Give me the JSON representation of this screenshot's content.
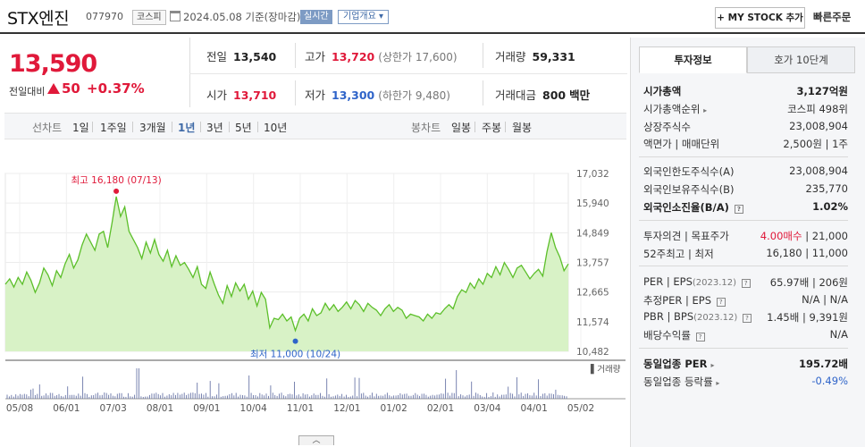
{
  "header": {
    "name": "STX엔진",
    "code": "077970",
    "market": "코스피",
    "date": "2024.05.08",
    "date_suffix": "기준(장마감)",
    "realtime": "실시간",
    "overview": "기업개요 ▾",
    "mystock_label": "+ MY STOCK 추가",
    "quick_order": "빠른주문"
  },
  "quote": {
    "price": "13,590",
    "diff_label": "전일대비",
    "diff": "50",
    "pct": "+0.37%",
    "prev_label": "전일",
    "prev": "13,540",
    "high_label": "고가",
    "high": "13,720",
    "upper_limit": "(상한가 17,600)",
    "volume_label": "거래량",
    "volume": "59,331",
    "open_label": "시가",
    "open": "13,710",
    "low_label": "저가",
    "low": "13,300",
    "lower_limit": "(하한가 9,480)",
    "amount_label": "거래대금",
    "amount": "800",
    "amount_unit": "백만"
  },
  "periods": {
    "line_label": "선차트",
    "items": [
      "1일",
      "1주일",
      "3개월",
      "1년",
      "3년",
      "5년",
      "10년"
    ],
    "active": "1년",
    "candle_label": "봉차트",
    "candle_items": [
      "일봉",
      "주봉",
      "월봉"
    ]
  },
  "chart_data": {
    "type": "area",
    "y_ticks": [
      "17,032",
      "15,940",
      "14,849",
      "13,757",
      "12,665",
      "11,574",
      "10,482"
    ],
    "ylim": [
      10482,
      17032
    ],
    "x_ticks": [
      "05/08",
      "06/01",
      "07/03",
      "08/01",
      "09/01",
      "10/04",
      "11/01",
      "12/01",
      "01/02",
      "02/01",
      "03/04",
      "04/01",
      "05/02"
    ],
    "high_annotation": "최고 16,180 (07/13)",
    "low_annotation": "최저 11,000 (10/24)",
    "volume_label": "거래량",
    "series": [
      {
        "values": [
          12950,
          13150,
          12850,
          13200,
          12950,
          13400,
          13100,
          12650,
          13000,
          13550,
          13300,
          12900,
          13450,
          13200,
          13700,
          14050,
          13550,
          13850,
          14400,
          14800,
          14500,
          14200,
          14800,
          14900,
          14300,
          15200,
          16180,
          15450,
          15800,
          14900,
          14600,
          14300,
          13900,
          14500,
          14100,
          14600,
          14050,
          13800,
          14200,
          13600,
          14000,
          13650,
          13750,
          13500,
          13200,
          13600,
          12950,
          12800,
          13400,
          12950,
          12550,
          12250,
          12900,
          12500,
          13000,
          12700,
          12950,
          12400,
          12700,
          12150,
          12650,
          12400,
          11350,
          11700,
          11650,
          11850,
          11600,
          11750,
          11250,
          11700,
          11850,
          11600,
          12050,
          11800,
          11900,
          12250,
          12000,
          12200,
          11950,
          12100,
          12300,
          12050,
          12350,
          12200,
          11950,
          12250,
          12100,
          12000,
          11800,
          12050,
          12200,
          11950,
          12100,
          12000,
          11700,
          11850,
          11800,
          11750,
          11600,
          11850,
          11700,
          11900,
          11850,
          12050,
          12200,
          12050,
          12500,
          12750,
          12650,
          13000,
          12800,
          13150,
          12950,
          13350,
          13200,
          13600,
          13300,
          13750,
          13500,
          13200,
          13550,
          13650,
          13400,
          13150,
          13350,
          13500,
          13250,
          14150,
          14850,
          14300,
          13950,
          13450,
          13700
        ]
      }
    ]
  },
  "info_tabs": [
    "투자정보",
    "호가 10단계"
  ],
  "info": {
    "market_cap": {
      "k": "시가총액",
      "v": "3,127억원"
    },
    "market_cap_rank": {
      "k": "시가총액순위",
      "v": "코스피 498위"
    },
    "shares": {
      "k": "상장주식수",
      "v": "23,008,904"
    },
    "par_value": {
      "k": "액면가 | 매매단위",
      "v": "2,500원 | 1주"
    },
    "foreign_limit": {
      "k": "외국인한도주식수(A)",
      "v": "23,008,904"
    },
    "foreign_hold": {
      "k": "외국인보유주식수(B)",
      "v": "235,770"
    },
    "foreign_ratio": {
      "k": "외국인소진율(B/A)",
      "v": "1.02%"
    },
    "opinion": {
      "k": "투자의견 | 목표주가",
      "v1": "4.00매수",
      "v2": "| 21,000"
    },
    "week52": {
      "k": "52주최고 | 최저",
      "v": "16,180 | 11,000"
    },
    "per_eps": {
      "k": "PER | EPS",
      "k_sub": "(2023.12)",
      "v": "65.97배 | 206원"
    },
    "est_per_eps": {
      "k": "추정PER | EPS",
      "v": "N/A | N/A"
    },
    "pbr_bps": {
      "k": "PBR | BPS",
      "k_sub": "(2023.12)",
      "v": "1.45배 | 9,391원"
    },
    "dividend": {
      "k": "배당수익률",
      "v": "N/A"
    },
    "industry_per": {
      "k": "동일업종 PER",
      "v": "195.72배"
    },
    "industry_change": {
      "k": "동일업종 등락률",
      "v": "-0.49%"
    }
  }
}
